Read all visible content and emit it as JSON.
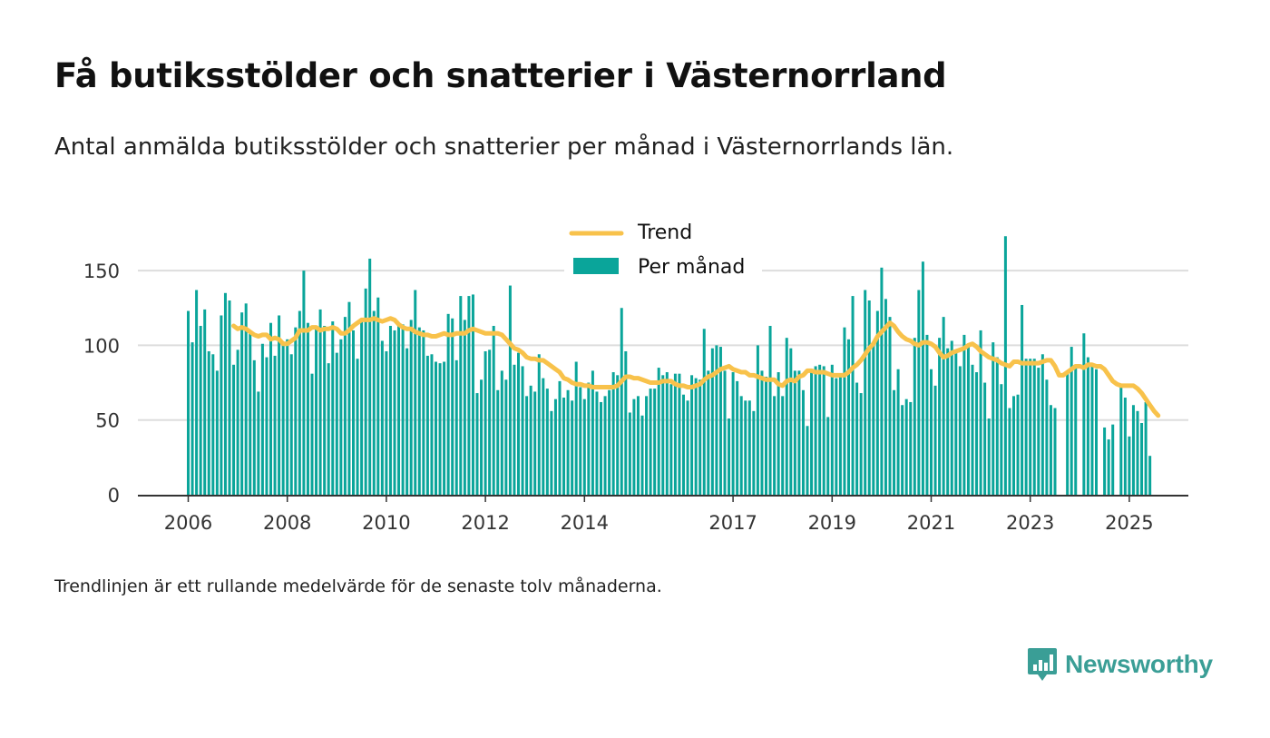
{
  "header": {
    "title": "Få butiksstölder och snatterier i Västernorrland",
    "subtitle": "Antal anmälda butiksstölder och snatterier per månad i Västernorrlands län."
  },
  "footer": {
    "note": "Trendlinjen är ett rullande medelvärde för de senaste tolv månaderna.",
    "brand": "Newsworthy"
  },
  "colors": {
    "bars": "#0aa59a",
    "trend": "#f8c24b",
    "grid": "#dddddd",
    "axis": "#333333"
  },
  "chart_data": {
    "type": "bar",
    "title": "Få butiksstölder och snatterier i Västernorrland",
    "subtitle": "Antal anmälda butiksstölder och snatterier per månad i Västernorrlands län.",
    "xlabel": "",
    "ylabel": "",
    "x_start": "2006-01",
    "ylim": [
      0,
      175
    ],
    "yticks": [
      0,
      50,
      100,
      150
    ],
    "xticks": [
      "2006",
      "2008",
      "2010",
      "2012",
      "2014",
      "2017",
      "2019",
      "2021",
      "2023",
      "2025"
    ],
    "grid": "horizontal",
    "legend_position": "top-center",
    "series": [
      {
        "name": "Per månad",
        "type": "bar",
        "values": [
          123,
          102,
          137,
          113,
          124,
          96,
          94,
          83,
          120,
          135,
          130,
          87,
          97,
          122,
          128,
          110,
          90,
          69,
          101,
          92,
          115,
          93,
          120,
          102,
          104,
          94,
          112,
          123,
          150,
          115,
          81,
          113,
          124,
          113,
          88,
          116,
          95,
          104,
          119,
          129,
          110,
          91,
          117,
          138,
          158,
          123,
          132,
          103,
          96,
          113,
          110,
          115,
          114,
          98,
          117,
          137,
          112,
          110,
          93,
          94,
          89,
          88,
          89,
          121,
          118,
          90,
          133,
          117,
          133,
          134,
          68,
          77,
          96,
          97,
          113,
          70,
          83,
          77,
          140,
          87,
          95,
          86,
          66,
          73,
          69,
          94,
          78,
          71,
          56,
          64,
          76,
          65,
          70,
          63,
          89,
          72,
          64,
          75,
          83,
          69,
          62,
          66,
          70,
          82,
          80,
          125,
          96,
          55,
          64,
          66,
          53,
          66,
          71,
          71,
          85,
          80,
          82,
          74,
          81,
          81,
          67,
          63,
          80,
          78,
          77,
          111,
          83,
          98,
          100,
          99,
          83,
          51,
          82,
          76,
          66,
          63,
          63,
          56,
          100,
          83,
          79,
          113,
          66,
          82,
          66,
          105,
          98,
          83,
          83,
          70,
          46,
          83,
          86,
          87,
          86,
          52,
          87,
          78,
          80,
          112,
          104,
          133,
          75,
          68,
          137,
          130,
          100,
          123,
          152,
          131,
          119,
          70,
          84,
          60,
          64,
          62,
          105,
          137,
          156,
          107,
          84,
          73,
          105,
          119,
          98,
          103,
          95,
          86,
          107,
          101,
          87,
          82,
          110,
          75,
          51,
          102,
          92,
          74,
          173,
          58,
          66,
          67,
          127,
          91,
          91,
          91,
          85,
          94,
          77,
          60,
          58,
          0,
          0,
          83,
          99,
          86,
          0,
          108,
          92,
          88,
          84,
          0,
          45,
          37,
          47,
          0,
          72,
          65,
          39,
          60,
          56,
          48,
          62,
          26
        ]
      },
      {
        "name": "Trend",
        "type": "line",
        "values": [
          null,
          null,
          null,
          null,
          null,
          null,
          null,
          null,
          null,
          null,
          null,
          113,
          111,
          112,
          111,
          109,
          107,
          106,
          107,
          107,
          104,
          105,
          104,
          101,
          101,
          103,
          105,
          110,
          110,
          110,
          112,
          112,
          110,
          111,
          111,
          112,
          111,
          108,
          108,
          110,
          113,
          115,
          117,
          117,
          117,
          118,
          117,
          116,
          117,
          118,
          117,
          114,
          112,
          111,
          111,
          109,
          108,
          107,
          107,
          106,
          106,
          107,
          108,
          107,
          107,
          108,
          108,
          108,
          110,
          111,
          110,
          109,
          108,
          108,
          108,
          108,
          107,
          104,
          101,
          98,
          97,
          95,
          92,
          91,
          91,
          90,
          90,
          88,
          86,
          84,
          82,
          78,
          77,
          75,
          74,
          74,
          73,
          73,
          72,
          72,
          72,
          72,
          72,
          72,
          73,
          76,
          79,
          79,
          78,
          78,
          77,
          76,
          75,
          75,
          75,
          76,
          76,
          76,
          74,
          73,
          73,
          72,
          72,
          73,
          74,
          77,
          79,
          80,
          82,
          84,
          85,
          86,
          84,
          83,
          82,
          82,
          80,
          80,
          79,
          78,
          77,
          77,
          77,
          74,
          73,
          76,
          77,
          76,
          79,
          80,
          83,
          83,
          82,
          82,
          82,
          81,
          80,
          80,
          80,
          80,
          82,
          85,
          87,
          90,
          94,
          98,
          101,
          106,
          109,
          112,
          115,
          113,
          109,
          106,
          104,
          103,
          101,
          100,
          102,
          102,
          101,
          99,
          95,
          92,
          93,
          95,
          96,
          97,
          98,
          100,
          101,
          99,
          96,
          94,
          92,
          91,
          90,
          88,
          87,
          86,
          89,
          89,
          88,
          88,
          88,
          88,
          88,
          89,
          90,
          90,
          86,
          80,
          80,
          82,
          84,
          86,
          86,
          85,
          87,
          87,
          86,
          86,
          84,
          80,
          76,
          74,
          73,
          73,
          73,
          73,
          71,
          68,
          64,
          60,
          56,
          53
        ]
      }
    ]
  }
}
